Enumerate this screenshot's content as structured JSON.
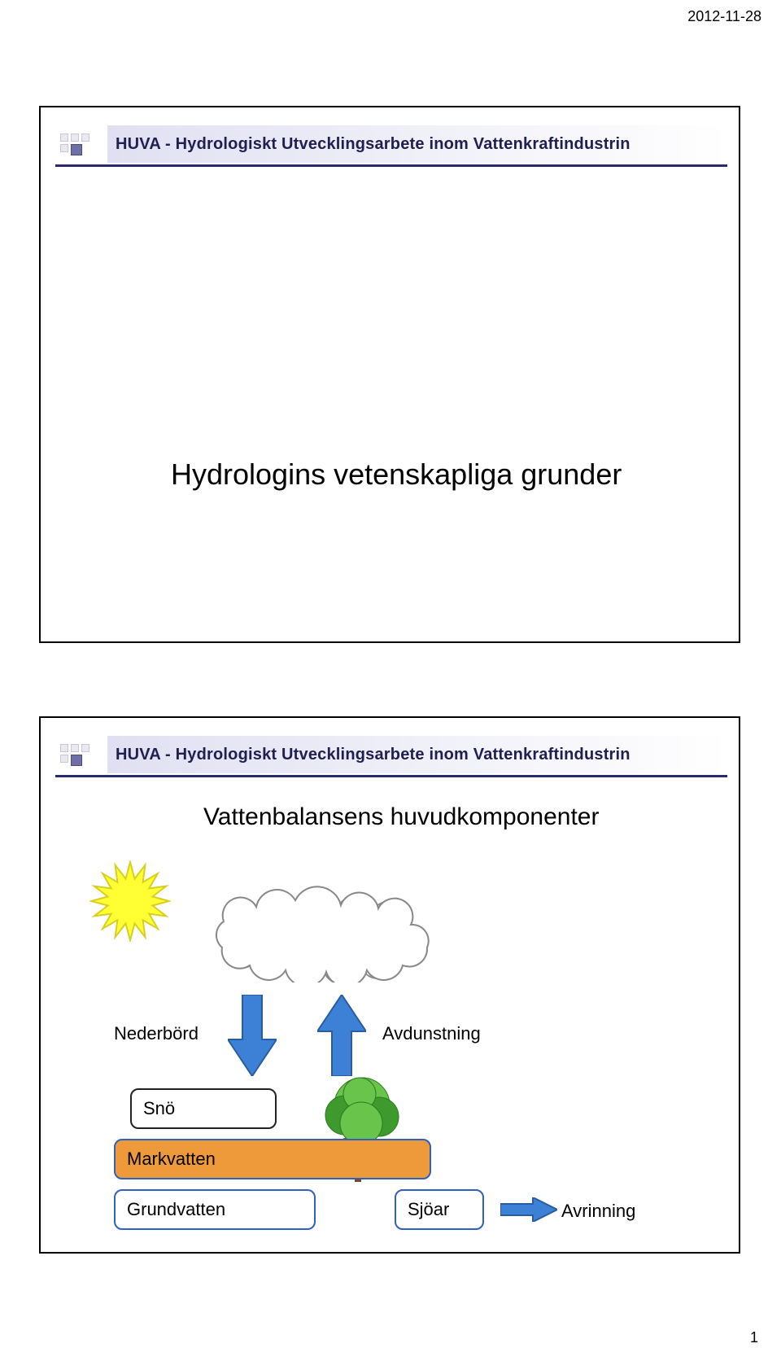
{
  "header_date": "2012-11-28",
  "page_number": "1",
  "banner_text": "HUVA - Hydrologiskt Utvecklingsarbete inom Vattenkraftindustrin",
  "slide1": {
    "title": "Hydrologins vetenskapliga grunder"
  },
  "slide2": {
    "title": "Vattenbalansens huvudkomponenter",
    "labels": {
      "nederbord": "Nederbörd",
      "avdunstning": "Avdunstning",
      "sno": "Snö",
      "markvatten": "Markvatten",
      "grundvatten": "Grundvatten",
      "sjoar": "Sjöar",
      "avrinning": "Avrinning"
    },
    "colors": {
      "sun_fill": "#ffff33",
      "sun_stroke": "#d8cf1e",
      "cloud_fill": "#ffffff",
      "cloud_stroke": "#888888",
      "arrow_fill": "#3d81d6",
      "arrow_stroke": "#2a5ca0",
      "markvatten_fill": "#ee9a3a",
      "markvatten_stroke": "#3060c0",
      "grundvatten_stroke": "#3060c0",
      "sjoar_stroke": "#3060c0",
      "sno_stroke": "#222222",
      "tree_foliage1": "#68c44a",
      "tree_foliage2": "#3e9a2c",
      "tree_trunk": "#7a4a22",
      "banner_underline": "#2a2a70"
    }
  }
}
